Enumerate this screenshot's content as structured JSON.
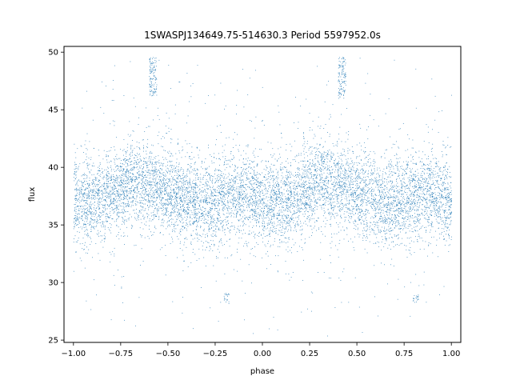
{
  "chart_data": {
    "type": "scatter",
    "title": "1SWASPJ134649.75-514630.3 Period 5597952.0s",
    "xlabel": "phase",
    "ylabel": "flux",
    "xlim": [
      -1.05,
      1.05
    ],
    "ylim": [
      24.8,
      50.5
    ],
    "xticks": [
      -1.0,
      -0.75,
      -0.5,
      -0.25,
      0.0,
      0.25,
      0.5,
      0.75,
      1.0
    ],
    "xtick_labels": [
      "−1.00",
      "−0.75",
      "−0.50",
      "−0.25",
      "0.00",
      "0.25",
      "0.50",
      "0.75",
      "1.00"
    ],
    "yticks": [
      25,
      30,
      35,
      40,
      45,
      50
    ],
    "ytick_labels": [
      "25",
      "30",
      "35",
      "40",
      "45",
      "50"
    ],
    "grid": false,
    "legend": "none",
    "marker_color": "#1f77b4",
    "series": [
      {
        "point_count_estimate": 30000,
        "phase_range": [
          -1.0,
          1.0
        ],
        "repeat_period_in_phase": 1.0,
        "median_flux_profile": [
          {
            "phase": 0.0,
            "flux": 37.0
          },
          {
            "phase": 0.1,
            "flux": 37.2
          },
          {
            "phase": 0.2,
            "flux": 37.5
          },
          {
            "phase": 0.3,
            "flux": 38.8
          },
          {
            "phase": 0.4,
            "flux": 38.5
          },
          {
            "phase": 0.5,
            "flux": 37.8
          },
          {
            "phase": 0.6,
            "flux": 37.2
          },
          {
            "phase": 0.7,
            "flux": 37.0
          },
          {
            "phase": 0.8,
            "flux": 37.4
          },
          {
            "phase": 0.9,
            "flux": 37.8
          },
          {
            "phase": 1.0,
            "flux": 37.0
          }
        ],
        "core_spread_flux": 2.2,
        "saturated_clusters": [
          {
            "phase_center": 0.42,
            "flux_range": [
              46.0,
              49.6
            ]
          },
          {
            "phase_center": -0.58,
            "flux_range": [
              46.0,
              49.6
            ]
          }
        ],
        "low_outlier_clusters": [
          {
            "phase_center": -0.19,
            "flux": 28.7
          },
          {
            "phase_center": 0.81,
            "flux": 28.7
          }
        ]
      }
    ]
  }
}
